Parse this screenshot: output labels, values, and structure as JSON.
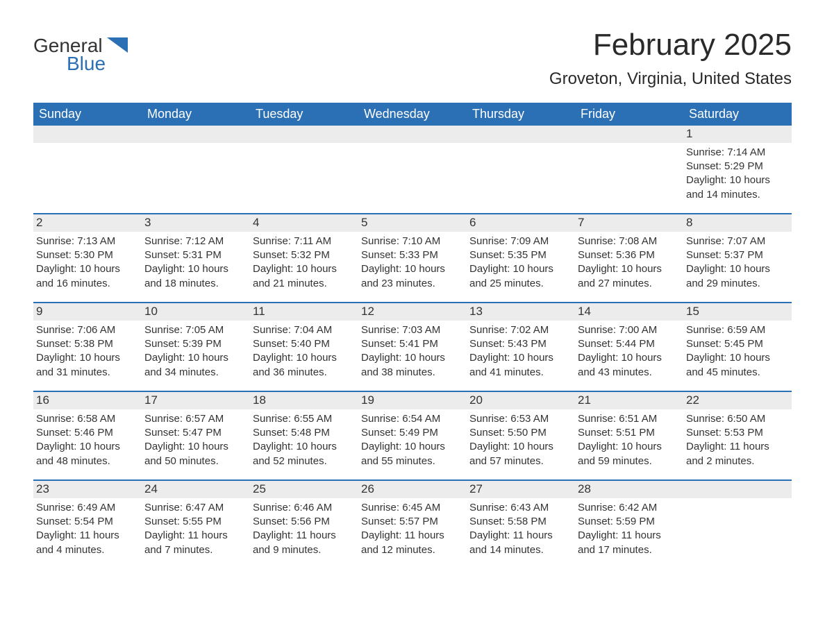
{
  "logo": {
    "general": "General",
    "blue": "Blue"
  },
  "title": "February 2025",
  "location": "Groveton, Virginia, United States",
  "colors": {
    "header_bg": "#2b6fb5",
    "header_text": "#ffffff",
    "row_separator": "#2b6fb5",
    "day_number_bg": "#ececec",
    "body_text": "#333333",
    "background": "#ffffff"
  },
  "weekdays": [
    "Sunday",
    "Monday",
    "Tuesday",
    "Wednesday",
    "Thursday",
    "Friday",
    "Saturday"
  ],
  "weeks": [
    [
      null,
      null,
      null,
      null,
      null,
      null,
      {
        "day": "1",
        "sunrise": "Sunrise: 7:14 AM",
        "sunset": "Sunset: 5:29 PM",
        "daylight": "Daylight: 10 hours and 14 minutes."
      }
    ],
    [
      {
        "day": "2",
        "sunrise": "Sunrise: 7:13 AM",
        "sunset": "Sunset: 5:30 PM",
        "daylight": "Daylight: 10 hours and 16 minutes."
      },
      {
        "day": "3",
        "sunrise": "Sunrise: 7:12 AM",
        "sunset": "Sunset: 5:31 PM",
        "daylight": "Daylight: 10 hours and 18 minutes."
      },
      {
        "day": "4",
        "sunrise": "Sunrise: 7:11 AM",
        "sunset": "Sunset: 5:32 PM",
        "daylight": "Daylight: 10 hours and 21 minutes."
      },
      {
        "day": "5",
        "sunrise": "Sunrise: 7:10 AM",
        "sunset": "Sunset: 5:33 PM",
        "daylight": "Daylight: 10 hours and 23 minutes."
      },
      {
        "day": "6",
        "sunrise": "Sunrise: 7:09 AM",
        "sunset": "Sunset: 5:35 PM",
        "daylight": "Daylight: 10 hours and 25 minutes."
      },
      {
        "day": "7",
        "sunrise": "Sunrise: 7:08 AM",
        "sunset": "Sunset: 5:36 PM",
        "daylight": "Daylight: 10 hours and 27 minutes."
      },
      {
        "day": "8",
        "sunrise": "Sunrise: 7:07 AM",
        "sunset": "Sunset: 5:37 PM",
        "daylight": "Daylight: 10 hours and 29 minutes."
      }
    ],
    [
      {
        "day": "9",
        "sunrise": "Sunrise: 7:06 AM",
        "sunset": "Sunset: 5:38 PM",
        "daylight": "Daylight: 10 hours and 31 minutes."
      },
      {
        "day": "10",
        "sunrise": "Sunrise: 7:05 AM",
        "sunset": "Sunset: 5:39 PM",
        "daylight": "Daylight: 10 hours and 34 minutes."
      },
      {
        "day": "11",
        "sunrise": "Sunrise: 7:04 AM",
        "sunset": "Sunset: 5:40 PM",
        "daylight": "Daylight: 10 hours and 36 minutes."
      },
      {
        "day": "12",
        "sunrise": "Sunrise: 7:03 AM",
        "sunset": "Sunset: 5:41 PM",
        "daylight": "Daylight: 10 hours and 38 minutes."
      },
      {
        "day": "13",
        "sunrise": "Sunrise: 7:02 AM",
        "sunset": "Sunset: 5:43 PM",
        "daylight": "Daylight: 10 hours and 41 minutes."
      },
      {
        "day": "14",
        "sunrise": "Sunrise: 7:00 AM",
        "sunset": "Sunset: 5:44 PM",
        "daylight": "Daylight: 10 hours and 43 minutes."
      },
      {
        "day": "15",
        "sunrise": "Sunrise: 6:59 AM",
        "sunset": "Sunset: 5:45 PM",
        "daylight": "Daylight: 10 hours and 45 minutes."
      }
    ],
    [
      {
        "day": "16",
        "sunrise": "Sunrise: 6:58 AM",
        "sunset": "Sunset: 5:46 PM",
        "daylight": "Daylight: 10 hours and 48 minutes."
      },
      {
        "day": "17",
        "sunrise": "Sunrise: 6:57 AM",
        "sunset": "Sunset: 5:47 PM",
        "daylight": "Daylight: 10 hours and 50 minutes."
      },
      {
        "day": "18",
        "sunrise": "Sunrise: 6:55 AM",
        "sunset": "Sunset: 5:48 PM",
        "daylight": "Daylight: 10 hours and 52 minutes."
      },
      {
        "day": "19",
        "sunrise": "Sunrise: 6:54 AM",
        "sunset": "Sunset: 5:49 PM",
        "daylight": "Daylight: 10 hours and 55 minutes."
      },
      {
        "day": "20",
        "sunrise": "Sunrise: 6:53 AM",
        "sunset": "Sunset: 5:50 PM",
        "daylight": "Daylight: 10 hours and 57 minutes."
      },
      {
        "day": "21",
        "sunrise": "Sunrise: 6:51 AM",
        "sunset": "Sunset: 5:51 PM",
        "daylight": "Daylight: 10 hours and 59 minutes."
      },
      {
        "day": "22",
        "sunrise": "Sunrise: 6:50 AM",
        "sunset": "Sunset: 5:53 PM",
        "daylight": "Daylight: 11 hours and 2 minutes."
      }
    ],
    [
      {
        "day": "23",
        "sunrise": "Sunrise: 6:49 AM",
        "sunset": "Sunset: 5:54 PM",
        "daylight": "Daylight: 11 hours and 4 minutes."
      },
      {
        "day": "24",
        "sunrise": "Sunrise: 6:47 AM",
        "sunset": "Sunset: 5:55 PM",
        "daylight": "Daylight: 11 hours and 7 minutes."
      },
      {
        "day": "25",
        "sunrise": "Sunrise: 6:46 AM",
        "sunset": "Sunset: 5:56 PM",
        "daylight": "Daylight: 11 hours and 9 minutes."
      },
      {
        "day": "26",
        "sunrise": "Sunrise: 6:45 AM",
        "sunset": "Sunset: 5:57 PM",
        "daylight": "Daylight: 11 hours and 12 minutes."
      },
      {
        "day": "27",
        "sunrise": "Sunrise: 6:43 AM",
        "sunset": "Sunset: 5:58 PM",
        "daylight": "Daylight: 11 hours and 14 minutes."
      },
      {
        "day": "28",
        "sunrise": "Sunrise: 6:42 AM",
        "sunset": "Sunset: 5:59 PM",
        "daylight": "Daylight: 11 hours and 17 minutes."
      },
      null
    ]
  ]
}
